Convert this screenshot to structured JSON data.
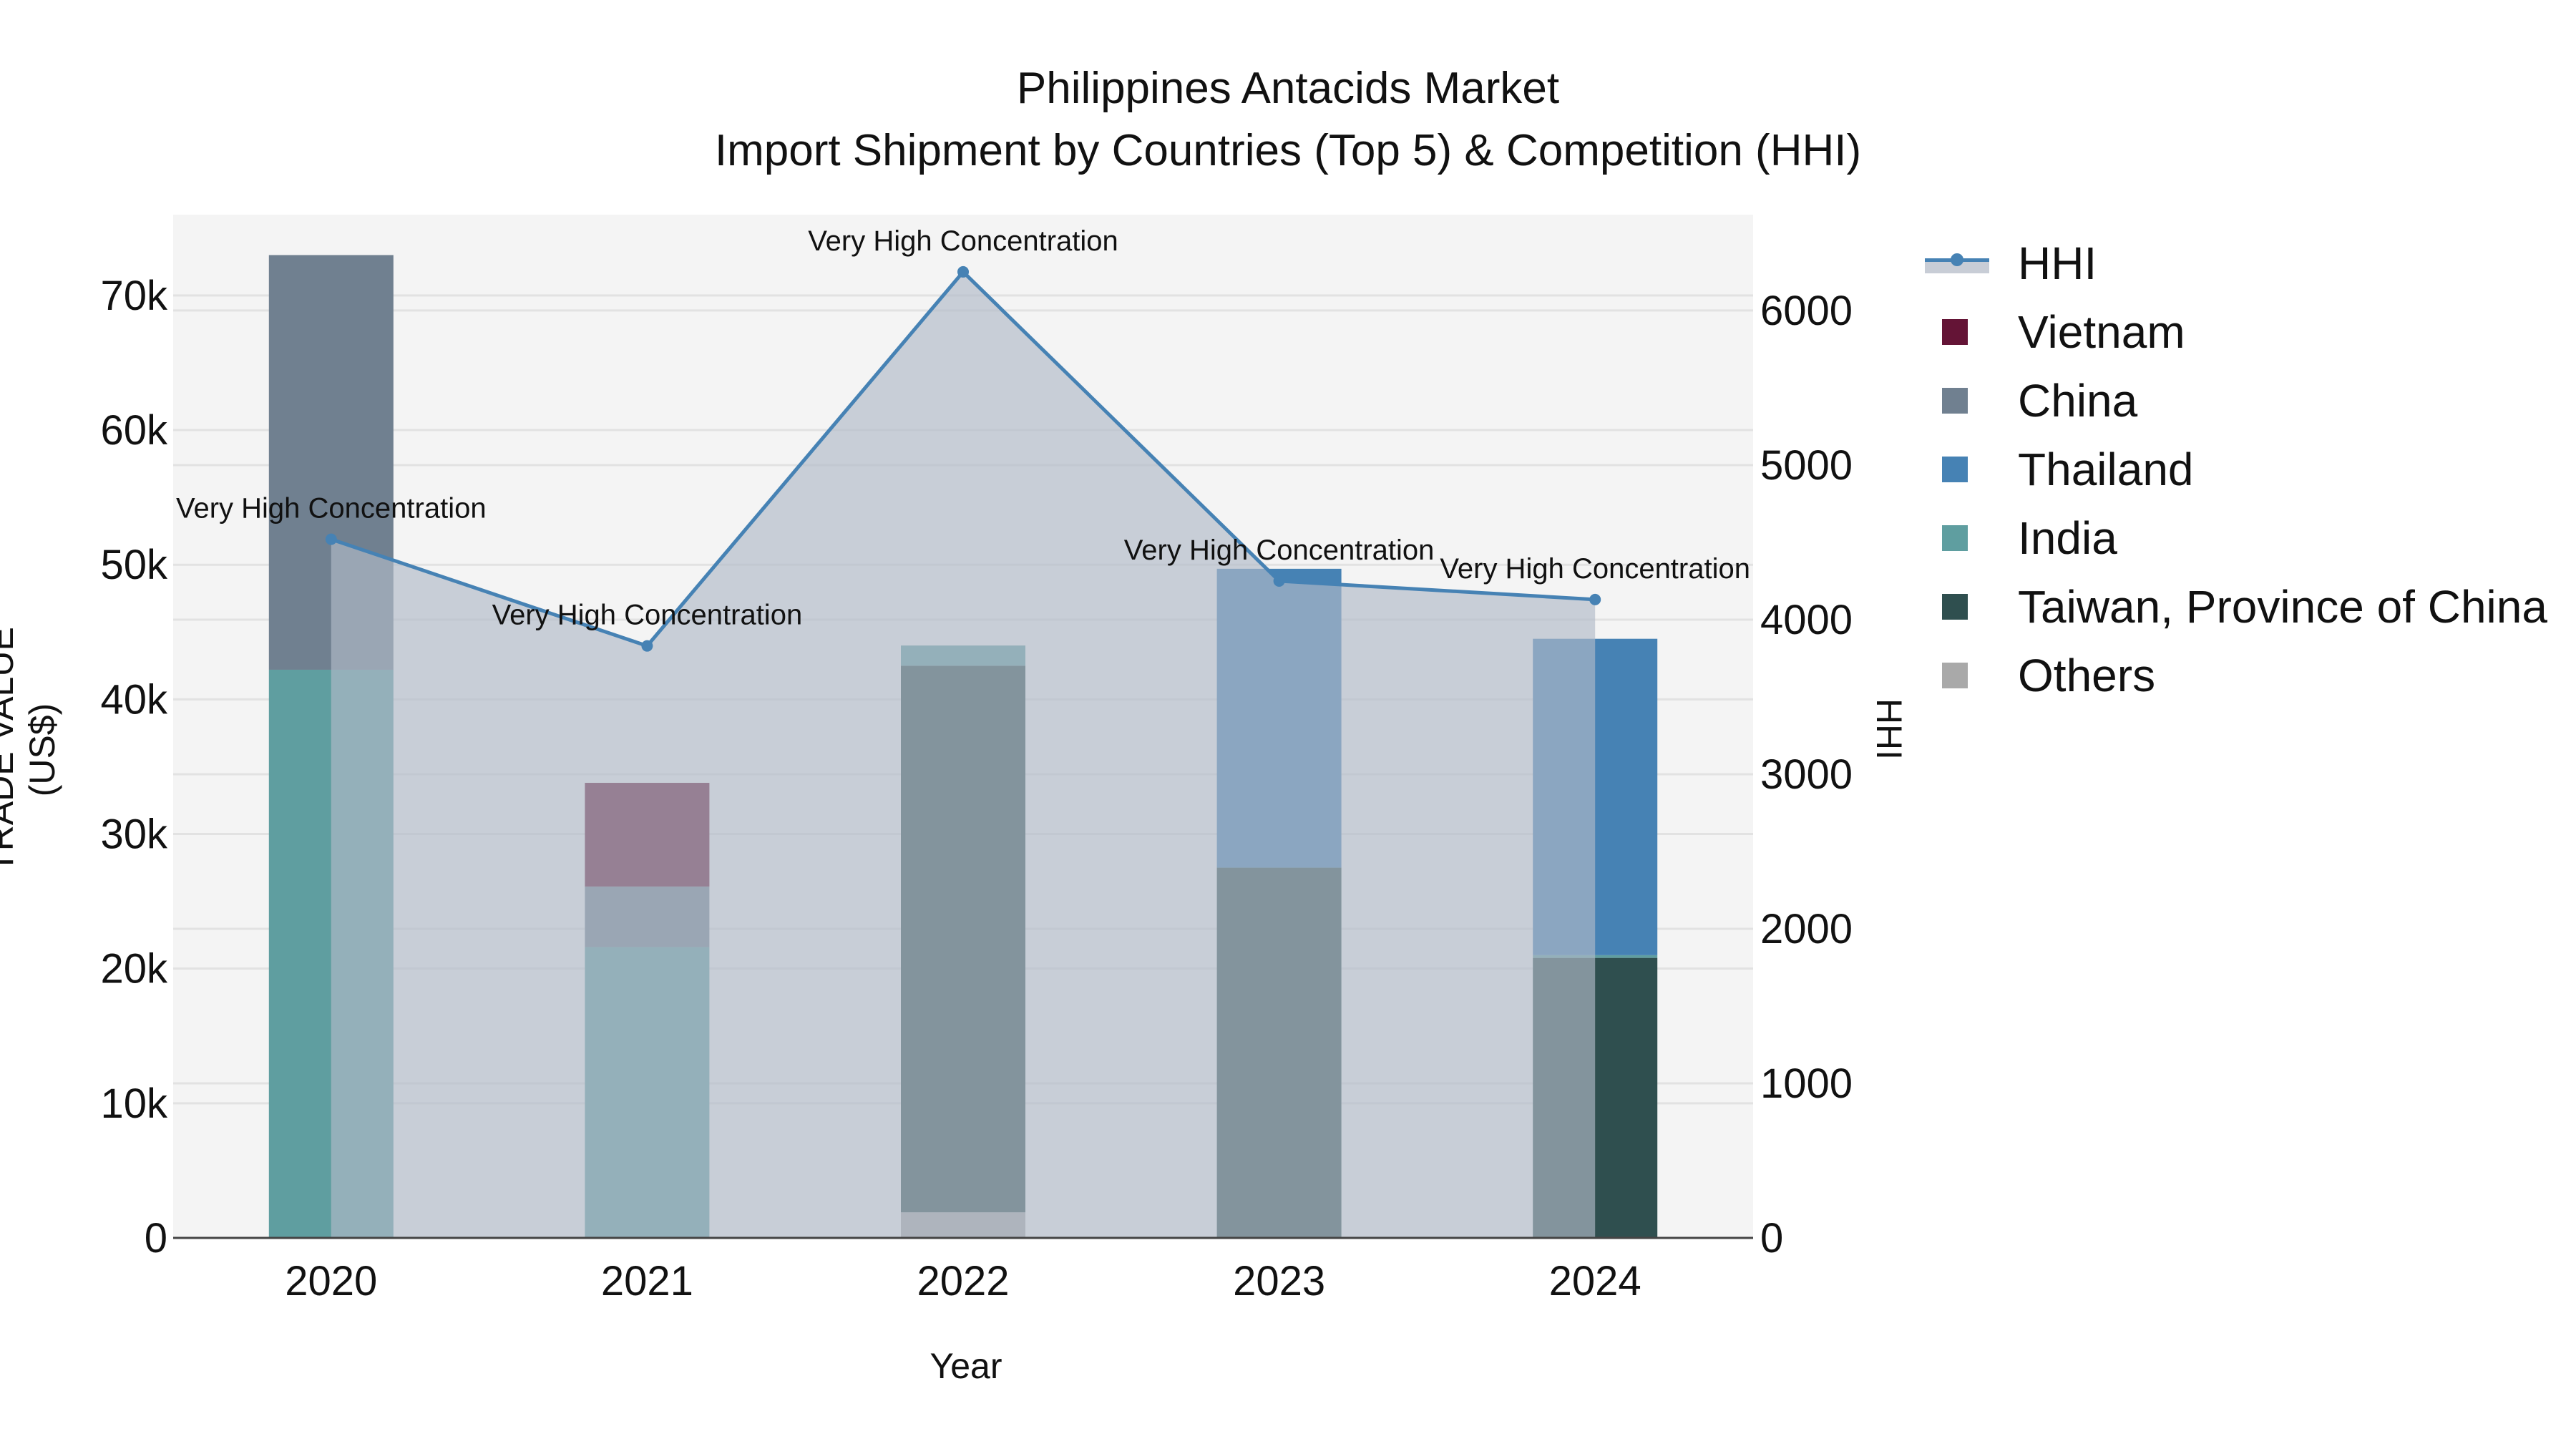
{
  "title": {
    "line1": "Philippines Antacids Market",
    "line2": "Import Shipment by Countries (Top 5) & Competition (HHI)"
  },
  "axes": {
    "x_title": "Year",
    "y_left_title": "TRADE VALUE (US$)",
    "y_right_title": "HHI",
    "y_left_ticks": [
      "0",
      "10k",
      "20k",
      "30k",
      "40k",
      "50k",
      "60k",
      "70k"
    ],
    "y_right_ticks": [
      "0",
      "1000",
      "2000",
      "3000",
      "4000",
      "5000",
      "6000"
    ],
    "x_ticks": [
      "2020",
      "2021",
      "2022",
      "2023",
      "2024"
    ]
  },
  "legend": [
    {
      "name": "HHI",
      "type": "line",
      "color": "#4682b4"
    },
    {
      "name": "Vietnam",
      "type": "bar",
      "color": "#641436"
    },
    {
      "name": "China",
      "type": "bar",
      "color": "#708090"
    },
    {
      "name": "Thailand",
      "type": "bar",
      "color": "#4682b4"
    },
    {
      "name": "India",
      "type": "bar",
      "color": "#5f9ea0"
    },
    {
      "name": "Taiwan, Province of China",
      "type": "bar",
      "color": "#2f4f4f"
    },
    {
      "name": "Others",
      "type": "bar",
      "color": "#a9a9a9"
    }
  ],
  "annotation_label": "Very High Concentration",
  "chart_data": {
    "type": "bar",
    "stacked": true,
    "title": "Philippines Antacids Market — Import Shipment by Countries (Top 5) & Competition (HHI)",
    "xlabel": "Year",
    "ylabel": "TRADE VALUE (US$)",
    "y2label": "HHI",
    "categories": [
      "2020",
      "2021",
      "2022",
      "2023",
      "2024"
    ],
    "ylim": [
      0,
      76000
    ],
    "y2lim": [
      0,
      6620
    ],
    "series": [
      {
        "name": "Others",
        "color": "#a9a9a9",
        "values": [
          0,
          0,
          1900,
          0,
          0
        ]
      },
      {
        "name": "Taiwan, Province of China",
        "color": "#2f4f4f",
        "values": [
          0,
          0,
          40600,
          27500,
          20800
        ]
      },
      {
        "name": "India",
        "color": "#5f9ea0",
        "values": [
          42200,
          21600,
          1500,
          0,
          200
        ]
      },
      {
        "name": "Thailand",
        "color": "#4682b4",
        "values": [
          0,
          0,
          0,
          22200,
          23500
        ]
      },
      {
        "name": "China",
        "color": "#708090",
        "values": [
          30800,
          4500,
          0,
          0,
          0
        ]
      },
      {
        "name": "Vietnam",
        "color": "#641436",
        "values": [
          0,
          7700,
          0,
          0,
          0
        ]
      }
    ],
    "line_series": {
      "name": "HHI",
      "axis": "right",
      "color": "#4682b4",
      "fill": "tozeroy",
      "values": [
        4520,
        3830,
        6250,
        4250,
        4130
      ],
      "annotations": [
        "Very High Concentration",
        "Very High Concentration",
        "Very High Concentration",
        "Very High Concentration",
        "Very High Concentration"
      ]
    },
    "grid": true,
    "legend_position": "right"
  }
}
